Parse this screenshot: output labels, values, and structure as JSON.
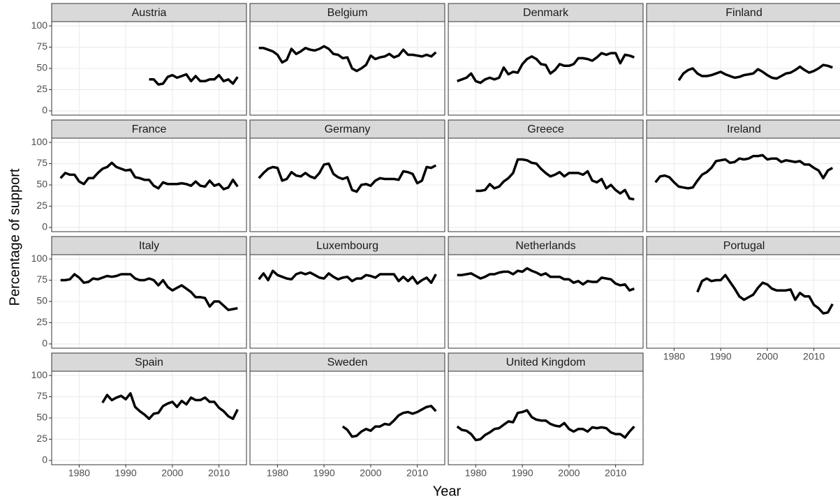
{
  "chart_data": {
    "type": "line",
    "xlabel": "Year",
    "ylabel": "Percentage of support",
    "xlim": [
      1974.1,
      2015.9
    ],
    "ylim": [
      -5,
      105
    ],
    "xticks": [
      1980,
      1990,
      2000,
      2010
    ],
    "yticks": [
      0,
      25,
      50,
      75,
      100
    ],
    "grid": true,
    "color": "#000000",
    "x": [
      1976,
      1977,
      1978,
      1979,
      1980,
      1981,
      1982,
      1983,
      1984,
      1985,
      1986,
      1987,
      1988,
      1989,
      1990,
      1991,
      1992,
      1993,
      1994,
      1995,
      1996,
      1997,
      1998,
      1999,
      2000,
      2001,
      2002,
      2003,
      2004,
      2005,
      2006,
      2007,
      2008,
      2009,
      2010,
      2011,
      2012,
      2013,
      2014
    ],
    "panels": [
      {
        "title": "Austria",
        "values": [
          null,
          null,
          null,
          null,
          null,
          null,
          null,
          null,
          null,
          null,
          null,
          null,
          null,
          null,
          null,
          null,
          null,
          null,
          null,
          37,
          37,
          31,
          32,
          40,
          42,
          39,
          41,
          43,
          35,
          41,
          35,
          35,
          37,
          37,
          42,
          35,
          37,
          32,
          40
        ]
      },
      {
        "title": "Belgium",
        "values": [
          74,
          74,
          72,
          70,
          66,
          57,
          60,
          73,
          67,
          70,
          74,
          72,
          71,
          73,
          76,
          73,
          67,
          66,
          62,
          63,
          50,
          47,
          50,
          54,
          65,
          61,
          63,
          64,
          67,
          63,
          65,
          72,
          66,
          66,
          65,
          64,
          66,
          64,
          69
        ]
      },
      {
        "title": "Denmark",
        "values": [
          35,
          37,
          39,
          44,
          35,
          33,
          37,
          39,
          37,
          39,
          51,
          43,
          46,
          45,
          55,
          61,
          64,
          61,
          55,
          54,
          44,
          48,
          55,
          53,
          53,
          55,
          62,
          62,
          61,
          59,
          63,
          68,
          66,
          68,
          68,
          56,
          66,
          65,
          63
        ]
      },
      {
        "title": "Finland",
        "values": [
          null,
          null,
          null,
          null,
          null,
          36,
          44,
          48,
          50,
          44,
          41,
          41,
          42,
          44,
          46,
          43,
          41,
          39,
          40,
          42,
          43,
          44,
          49,
          46,
          42,
          39,
          38,
          41,
          44,
          45,
          48,
          52,
          48,
          45,
          47,
          50,
          54,
          53,
          51
        ]
      },
      {
        "title": "France",
        "values": [
          58,
          64,
          62,
          62,
          54,
          51,
          58,
          58,
          64,
          69,
          71,
          76,
          71,
          69,
          67,
          68,
          59,
          58,
          56,
          56,
          49,
          46,
          53,
          51,
          51,
          51,
          52,
          51,
          49,
          54,
          49,
          48,
          55,
          49,
          51,
          45,
          47,
          56,
          48
        ]
      },
      {
        "title": "Germany",
        "values": [
          58,
          64,
          69,
          71,
          70,
          55,
          57,
          65,
          61,
          60,
          64,
          60,
          58,
          64,
          74,
          75,
          63,
          59,
          57,
          59,
          44,
          42,
          50,
          51,
          49,
          55,
          58,
          57,
          57,
          57,
          56,
          66,
          65,
          63,
          52,
          55,
          71,
          70,
          73
        ]
      },
      {
        "title": "Greece",
        "values": [
          null,
          null,
          null,
          null,
          43,
          43,
          44,
          51,
          46,
          48,
          54,
          58,
          64,
          80,
          80,
          79,
          76,
          75,
          69,
          64,
          60,
          62,
          65,
          60,
          64,
          64,
          64,
          62,
          66,
          55,
          53,
          57,
          46,
          50,
          44,
          40,
          44,
          34,
          33
        ]
      },
      {
        "title": "Ireland",
        "values": [
          53,
          60,
          61,
          59,
          53,
          48,
          47,
          46,
          47,
          55,
          62,
          65,
          70,
          78,
          79,
          80,
          76,
          77,
          81,
          80,
          81,
          84,
          84,
          85,
          80,
          81,
          81,
          77,
          79,
          78,
          77,
          78,
          74,
          74,
          70,
          67,
          58,
          67,
          70
        ]
      },
      {
        "title": "Italy",
        "values": [
          75,
          75,
          76,
          82,
          78,
          72,
          73,
          77,
          76,
          78,
          80,
          79,
          80,
          82,
          82,
          82,
          77,
          75,
          75,
          77,
          75,
          69,
          75,
          67,
          63,
          66,
          69,
          65,
          61,
          55,
          55,
          54,
          44,
          50,
          50,
          45,
          40,
          41,
          42
        ]
      },
      {
        "title": "Luxembourg",
        "values": [
          76,
          83,
          75,
          86,
          81,
          79,
          77,
          76,
          82,
          84,
          82,
          84,
          81,
          78,
          77,
          83,
          79,
          76,
          78,
          79,
          74,
          77,
          77,
          81,
          80,
          78,
          82,
          82,
          82,
          82,
          74,
          79,
          74,
          79,
          71,
          75,
          78,
          72,
          82
        ]
      },
      {
        "title": "Netherlands",
        "values": [
          81,
          81,
          82,
          83,
          80,
          77,
          79,
          82,
          82,
          84,
          85,
          85,
          82,
          86,
          85,
          89,
          86,
          84,
          81,
          83,
          79,
          79,
          79,
          76,
          76,
          72,
          74,
          70,
          74,
          73,
          73,
          78,
          77,
          76,
          71,
          69,
          70,
          63,
          65
        ]
      },
      {
        "title": "Portugal",
        "values": [
          null,
          null,
          null,
          null,
          null,
          null,
          null,
          null,
          null,
          61,
          74,
          77,
          74,
          75,
          75,
          81,
          73,
          65,
          56,
          52,
          55,
          58,
          66,
          72,
          70,
          65,
          63,
          63,
          63,
          64,
          52,
          60,
          56,
          56,
          46,
          42,
          36,
          37,
          47
        ]
      },
      {
        "title": "Spain",
        "values": [
          null,
          null,
          null,
          null,
          null,
          null,
          null,
          null,
          null,
          68,
          77,
          71,
          74,
          76,
          72,
          79,
          63,
          58,
          54,
          49,
          55,
          56,
          64,
          67,
          69,
          63,
          70,
          66,
          74,
          71,
          71,
          74,
          69,
          69,
          62,
          58,
          52,
          49,
          60
        ]
      },
      {
        "title": "Sweden",
        "values": [
          null,
          null,
          null,
          null,
          null,
          null,
          null,
          null,
          null,
          null,
          null,
          null,
          null,
          null,
          null,
          null,
          null,
          null,
          40,
          36,
          28,
          29,
          34,
          37,
          35,
          40,
          40,
          43,
          42,
          47,
          53,
          56,
          57,
          55,
          57,
          60,
          63,
          64,
          58
        ]
      },
      {
        "title": "United Kingdom",
        "values": [
          40,
          36,
          35,
          31,
          24,
          25,
          30,
          33,
          37,
          38,
          42,
          46,
          45,
          56,
          57,
          59,
          51,
          48,
          47,
          47,
          43,
          41,
          40,
          44,
          37,
          34,
          37,
          37,
          34,
          39,
          38,
          39,
          38,
          33,
          31,
          31,
          27,
          34,
          40
        ]
      }
    ]
  }
}
